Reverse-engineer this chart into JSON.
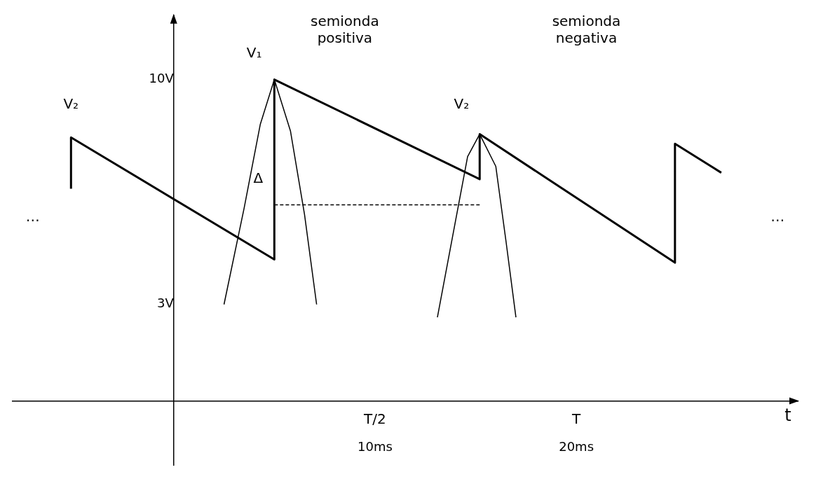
{
  "chart_data": {
    "type": "line",
    "xlabel": "t",
    "xlim": [
      -8,
      31
    ],
    "ylim": [
      -2,
      12
    ],
    "xticks": [
      {
        "value": 10,
        "label": "10ms"
      },
      {
        "value": 20,
        "label": "20ms"
      }
    ],
    "yticks": [
      {
        "value": 3,
        "label": "3V"
      },
      {
        "value": 10,
        "label": "10V"
      }
    ],
    "grid": false,
    "legend": false,
    "marker": "none",
    "series": [
      {
        "color": "#000000",
        "x": [
          -5.1,
          -5.1,
          5,
          5,
          15.2,
          15.2,
          24.9,
          24.9,
          27.2
        ],
        "values": [
          6.6,
          8.2,
          4.4,
          10,
          6.9,
          8.3,
          4.3,
          8.0,
          7.1
        ]
      },
      {
        "color": "#000000",
        "x": [
          2.5,
          3.5,
          4.3,
          5,
          5.8,
          6.5,
          7.1
        ],
        "values": [
          3.0,
          6.0,
          8.6,
          10,
          8.4,
          5.8,
          3.0
        ]
      },
      {
        "color": "#000000",
        "x": [
          13.1,
          14.0,
          14.6,
          15.2,
          16.0,
          16.5,
          17.0
        ],
        "values": [
          2.6,
          5.6,
          7.6,
          8.3,
          7.3,
          5.0,
          2.6
        ]
      },
      {
        "color": "#000000",
        "line_style": "dashed",
        "x": [
          5,
          15.2
        ],
        "values": [
          6.1,
          6.1
        ]
      }
    ],
    "annotations": [
      "V₂",
      "V₁",
      "V₂",
      "Δ",
      "semionda positiva",
      "semionda negativa",
      "…",
      "…",
      "T/2",
      "T"
    ]
  }
}
